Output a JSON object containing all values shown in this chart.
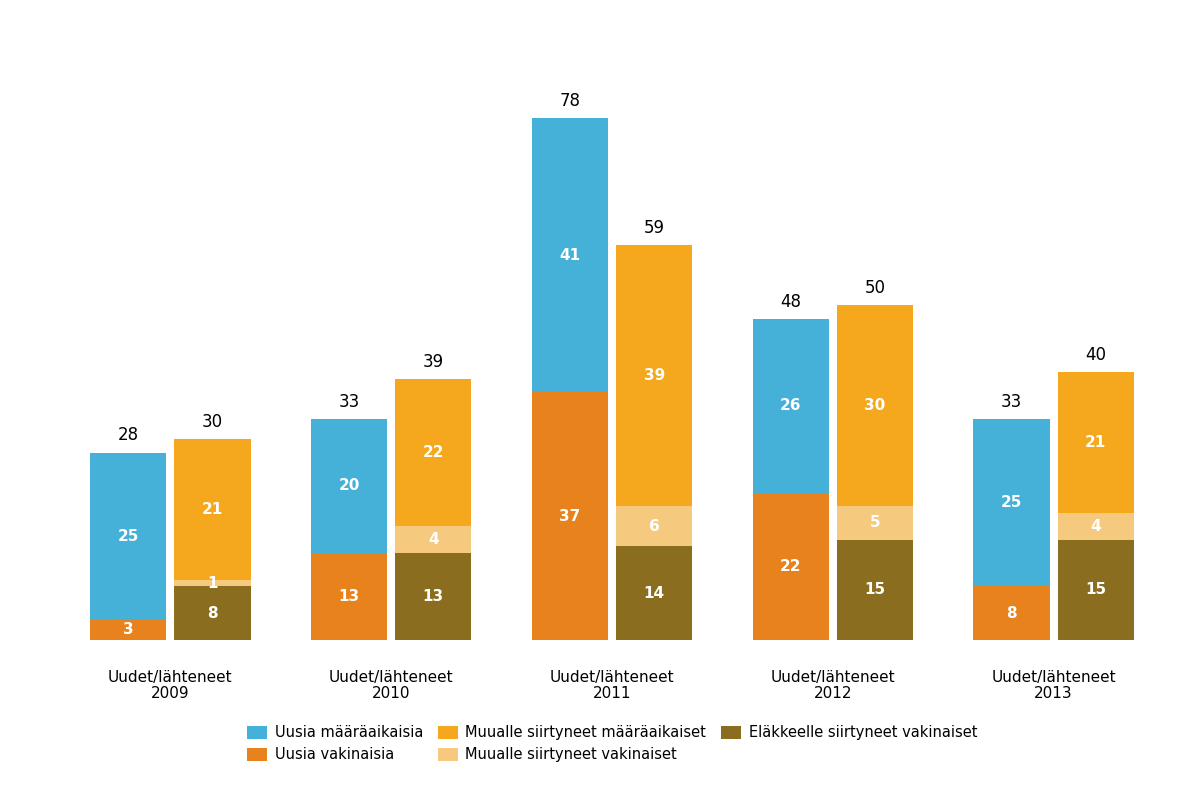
{
  "years": [
    "2009",
    "2010",
    "2011",
    "2012",
    "2013"
  ],
  "x_labels_top": [
    "Uudet/lähteneet",
    "Uudet/lähteneet",
    "Uudet/lähteneet",
    "Uudet/lähteneet",
    "Uudet/lähteneet"
  ],
  "x_labels_bot": [
    "2009",
    "2010",
    "2011",
    "2012",
    "2013"
  ],
  "new_fixed_term": [
    25,
    20,
    41,
    26,
    25
  ],
  "new_permanent": [
    3,
    13,
    37,
    22,
    8
  ],
  "new_totals": [
    28,
    33,
    78,
    48,
    33
  ],
  "left_fixed_term": [
    21,
    22,
    39,
    30,
    21
  ],
  "left_permanent": [
    1,
    4,
    6,
    5,
    4
  ],
  "left_retired": [
    8,
    13,
    14,
    15,
    15
  ],
  "left_totals": [
    30,
    39,
    59,
    50,
    40
  ],
  "color_blue": "#45B0D8",
  "color_orange_dark": "#E8821C",
  "color_orange_light": "#F5A81E",
  "color_peach": "#F5CA7E",
  "color_brown": "#8B6D20",
  "legend_labels_row1": [
    "Uusia määräaikaisia",
    "Uusia vakinaisia",
    "Muualle siirtyneet määräaikaiset"
  ],
  "legend_labels_row2": [
    "Muualle siirtyneet vakinaiset",
    "Eläkkeelle siirtyneet vakinaiset"
  ],
  "legend_colors_row1": [
    "#45B0D8",
    "#E8821C",
    "#F5A81E"
  ],
  "legend_colors_row2": [
    "#F5CA7E",
    "#8B6D20"
  ],
  "background_color": "#FFFFFF"
}
